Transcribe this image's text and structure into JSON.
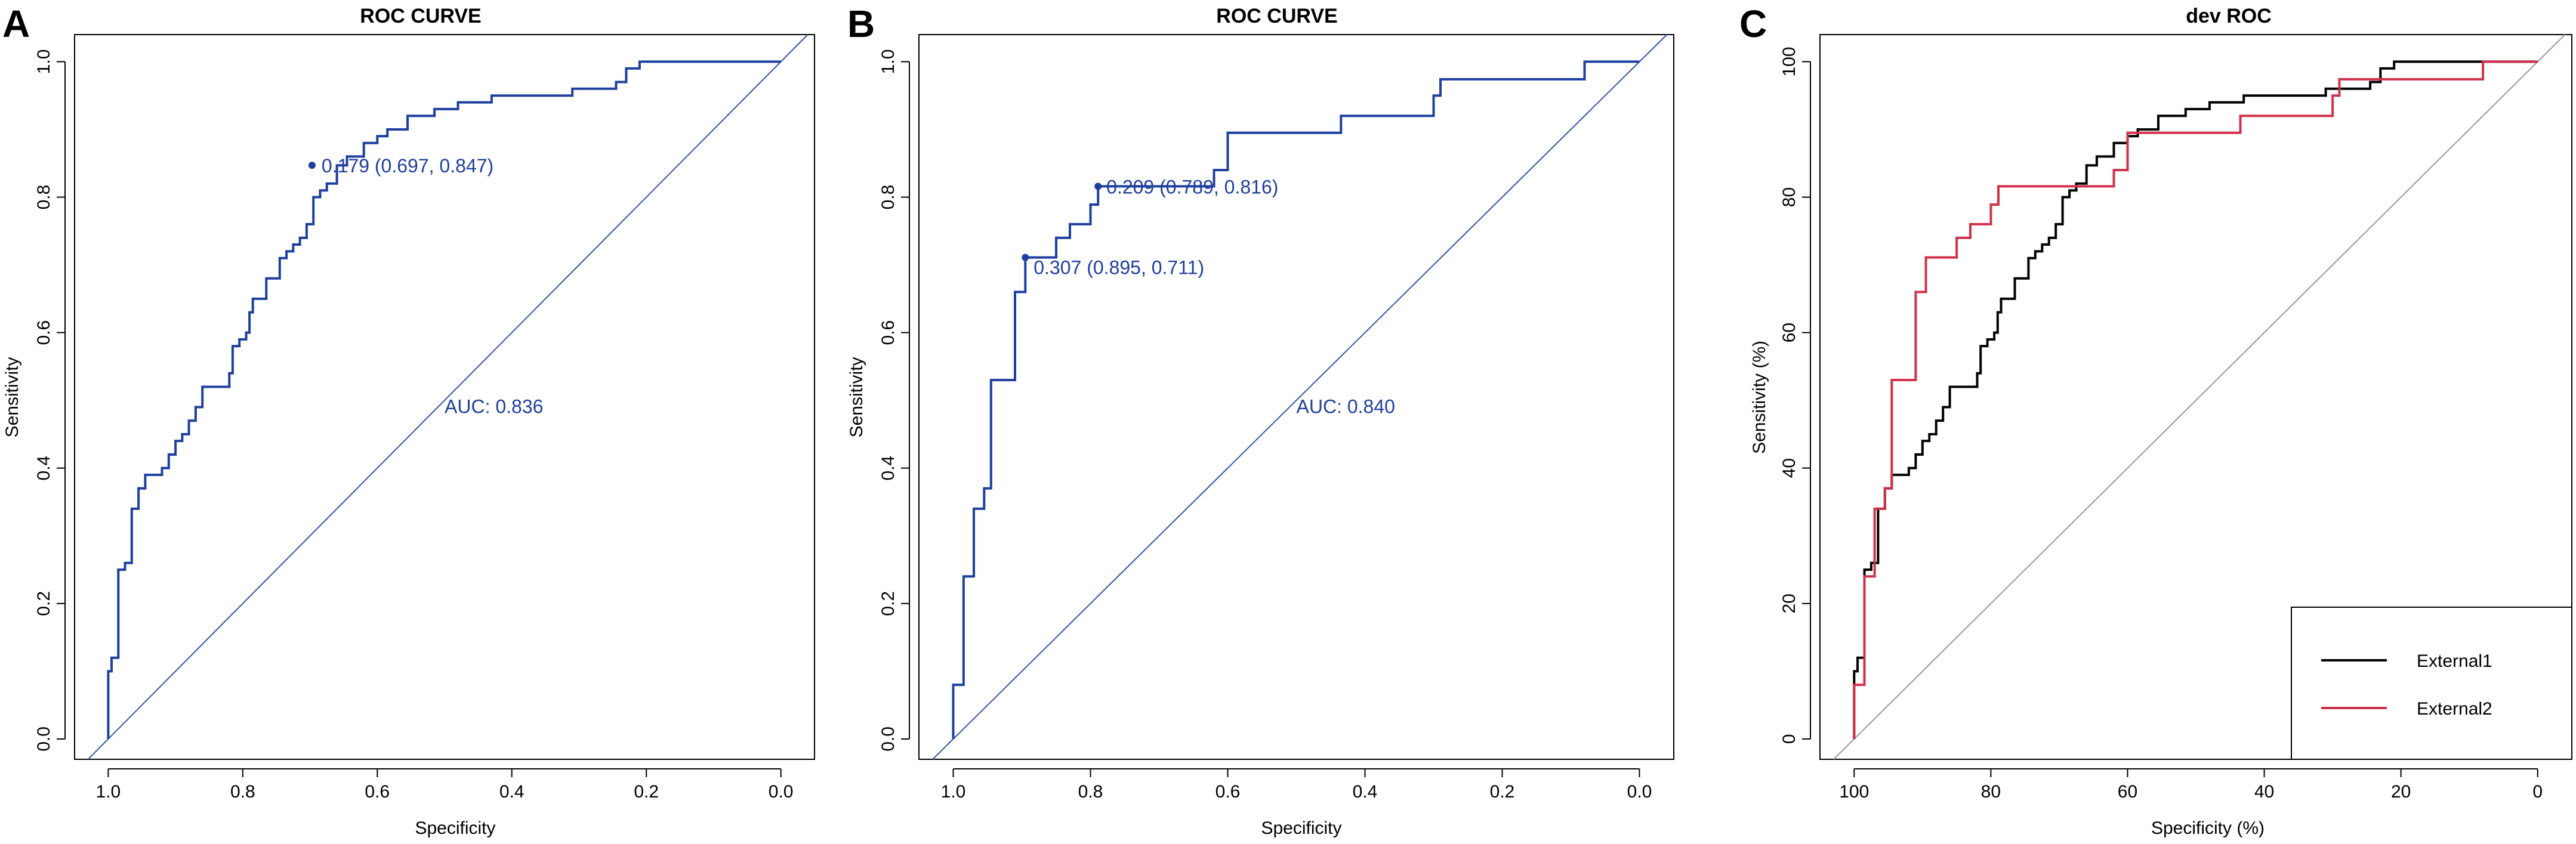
{
  "colors": {
    "roc_blue": "#1f3f9f",
    "diag_blue": "#3255a8",
    "black": "#000000",
    "red": "#d0314a",
    "grey": "#999999"
  },
  "chart_data": [
    {
      "panel": "A",
      "type": "line",
      "title": "ROC CURVE",
      "xlabel": "Specificity",
      "ylabel": "Sensitivity",
      "xlim": [
        1.05,
        -0.05
      ],
      "ylim": [
        -0.03,
        1.04
      ],
      "xticks": [
        "1.0",
        "0.8",
        "0.6",
        "0.4",
        "0.2",
        "0.0"
      ],
      "xtick_values": [
        1.0,
        0.8,
        0.6,
        0.4,
        0.2,
        0.0
      ],
      "yticks": [
        "0.0",
        "0.2",
        "0.4",
        "0.6",
        "0.8",
        "1.0"
      ],
      "ytick_values": [
        0.0,
        0.2,
        0.4,
        0.6,
        0.8,
        1.0
      ],
      "reference_line": true,
      "series": [
        {
          "name": "ROC",
          "color": "#1f3f9f",
          "points": [
            [
              1.0,
              0.0
            ],
            [
              1.0,
              0.1
            ],
            [
              0.995,
              0.1
            ],
            [
              0.995,
              0.12
            ],
            [
              0.985,
              0.12
            ],
            [
              0.985,
              0.25
            ],
            [
              0.975,
              0.25
            ],
            [
              0.975,
              0.26
            ],
            [
              0.965,
              0.26
            ],
            [
              0.965,
              0.34
            ],
            [
              0.955,
              0.34
            ],
            [
              0.955,
              0.37
            ],
            [
              0.945,
              0.37
            ],
            [
              0.945,
              0.39
            ],
            [
              0.92,
              0.39
            ],
            [
              0.92,
              0.4
            ],
            [
              0.91,
              0.4
            ],
            [
              0.91,
              0.42
            ],
            [
              0.9,
              0.42
            ],
            [
              0.9,
              0.44
            ],
            [
              0.89,
              0.44
            ],
            [
              0.89,
              0.45
            ],
            [
              0.88,
              0.45
            ],
            [
              0.88,
              0.47
            ],
            [
              0.87,
              0.47
            ],
            [
              0.87,
              0.49
            ],
            [
              0.86,
              0.49
            ],
            [
              0.86,
              0.52
            ],
            [
              0.82,
              0.52
            ],
            [
              0.82,
              0.54
            ],
            [
              0.815,
              0.54
            ],
            [
              0.815,
              0.58
            ],
            [
              0.805,
              0.58
            ],
            [
              0.805,
              0.59
            ],
            [
              0.795,
              0.59
            ],
            [
              0.795,
              0.6
            ],
            [
              0.79,
              0.6
            ],
            [
              0.79,
              0.63
            ],
            [
              0.785,
              0.63
            ],
            [
              0.785,
              0.65
            ],
            [
              0.765,
              0.65
            ],
            [
              0.765,
              0.68
            ],
            [
              0.745,
              0.68
            ],
            [
              0.745,
              0.71
            ],
            [
              0.735,
              0.71
            ],
            [
              0.735,
              0.72
            ],
            [
              0.725,
              0.72
            ],
            [
              0.725,
              0.73
            ],
            [
              0.715,
              0.73
            ],
            [
              0.715,
              0.74
            ],
            [
              0.705,
              0.74
            ],
            [
              0.705,
              0.76
            ],
            [
              0.695,
              0.76
            ],
            [
              0.695,
              0.8
            ],
            [
              0.685,
              0.8
            ],
            [
              0.685,
              0.81
            ],
            [
              0.675,
              0.81
            ],
            [
              0.675,
              0.82
            ],
            [
              0.66,
              0.82
            ],
            [
              0.66,
              0.847
            ],
            [
              0.645,
              0.847
            ],
            [
              0.645,
              0.86
            ],
            [
              0.62,
              0.86
            ],
            [
              0.62,
              0.88
            ],
            [
              0.6,
              0.88
            ],
            [
              0.6,
              0.89
            ],
            [
              0.585,
              0.89
            ],
            [
              0.585,
              0.9
            ],
            [
              0.555,
              0.9
            ],
            [
              0.555,
              0.92
            ],
            [
              0.515,
              0.92
            ],
            [
              0.515,
              0.93
            ],
            [
              0.48,
              0.93
            ],
            [
              0.48,
              0.94
            ],
            [
              0.43,
              0.94
            ],
            [
              0.43,
              0.95
            ],
            [
              0.31,
              0.95
            ],
            [
              0.31,
              0.96
            ],
            [
              0.245,
              0.96
            ],
            [
              0.245,
              0.97
            ],
            [
              0.23,
              0.97
            ],
            [
              0.23,
              0.99
            ],
            [
              0.21,
              0.99
            ],
            [
              0.21,
              1.0
            ],
            [
              0.0,
              1.0
            ]
          ]
        }
      ],
      "markers": [
        {
          "x": 0.697,
          "y": 0.847,
          "label": "0.179 (0.697, 0.847)"
        }
      ],
      "auc_text": "AUC: 0.836",
      "auc_pos": [
        0.5,
        0.49
      ]
    },
    {
      "panel": "B",
      "type": "line",
      "title": "ROC CURVE",
      "xlabel": "Specificity",
      "ylabel": "Sensitivity",
      "xlim": [
        1.05,
        -0.05
      ],
      "ylim": [
        -0.03,
        1.04
      ],
      "xticks": [
        "1.0",
        "0.8",
        "0.6",
        "0.4",
        "0.2",
        "0.0"
      ],
      "xtick_values": [
        1.0,
        0.8,
        0.6,
        0.4,
        0.2,
        0.0
      ],
      "yticks": [
        "0.0",
        "0.2",
        "0.4",
        "0.6",
        "0.8",
        "1.0"
      ],
      "ytick_values": [
        0.0,
        0.2,
        0.4,
        0.6,
        0.8,
        1.0
      ],
      "reference_line": true,
      "series": [
        {
          "name": "ROC",
          "color": "#1f3f9f",
          "points": [
            [
              1.0,
              0.0
            ],
            [
              1.0,
              0.08
            ],
            [
              0.985,
              0.08
            ],
            [
              0.985,
              0.24
            ],
            [
              0.97,
              0.24
            ],
            [
              0.97,
              0.34
            ],
            [
              0.955,
              0.34
            ],
            [
              0.955,
              0.37
            ],
            [
              0.945,
              0.37
            ],
            [
              0.945,
              0.53
            ],
            [
              0.91,
              0.53
            ],
            [
              0.91,
              0.66
            ],
            [
              0.895,
              0.66
            ],
            [
              0.895,
              0.711
            ],
            [
              0.85,
              0.711
            ],
            [
              0.85,
              0.74
            ],
            [
              0.83,
              0.74
            ],
            [
              0.83,
              0.76
            ],
            [
              0.8,
              0.76
            ],
            [
              0.8,
              0.789
            ],
            [
              0.789,
              0.789
            ],
            [
              0.789,
              0.816
            ],
            [
              0.62,
              0.816
            ],
            [
              0.62,
              0.84
            ],
            [
              0.6,
              0.84
            ],
            [
              0.6,
              0.895
            ],
            [
              0.435,
              0.895
            ],
            [
              0.435,
              0.92
            ],
            [
              0.3,
              0.92
            ],
            [
              0.3,
              0.95
            ],
            [
              0.29,
              0.95
            ],
            [
              0.29,
              0.974
            ],
            [
              0.08,
              0.974
            ],
            [
              0.08,
              1.0
            ],
            [
              0.0,
              1.0
            ]
          ]
        }
      ],
      "markers": [
        {
          "x": 0.789,
          "y": 0.816,
          "label": "0.209 (0.789, 0.816)"
        },
        {
          "x": 0.895,
          "y": 0.711,
          "label": "0.307 (0.895, 0.711)"
        }
      ],
      "auc_text": "AUC: 0.840",
      "auc_pos": [
        0.5,
        0.49
      ]
    },
    {
      "panel": "C",
      "type": "line",
      "title": "dev ROC",
      "xlabel": "Specificity (%)",
      "ylabel": "Sensitivity (%)",
      "xlim": [
        105,
        -5
      ],
      "ylim": [
        -3,
        104
      ],
      "xticks": [
        "100",
        "80",
        "60",
        "40",
        "20",
        "0"
      ],
      "xtick_values": [
        100,
        80,
        60,
        40,
        20,
        0
      ],
      "yticks": [
        "0",
        "20",
        "40",
        "60",
        "80",
        "100"
      ],
      "ytick_values": [
        0,
        20,
        40,
        60,
        80,
        100
      ],
      "reference_line": true,
      "series": [
        {
          "name": "External1",
          "color": "#000000",
          "points": [
            [
              100,
              0
            ],
            [
              100,
              10
            ],
            [
              99.5,
              10
            ],
            [
              99.5,
              12
            ],
            [
              98.5,
              12
            ],
            [
              98.5,
              25
            ],
            [
              97.5,
              25
            ],
            [
              97.5,
              26
            ],
            [
              96.5,
              26
            ],
            [
              96.5,
              34
            ],
            [
              95.5,
              34
            ],
            [
              95.5,
              37
            ],
            [
              94.5,
              37
            ],
            [
              94.5,
              39
            ],
            [
              92,
              39
            ],
            [
              92,
              40
            ],
            [
              91,
              40
            ],
            [
              91,
              42
            ],
            [
              90,
              42
            ],
            [
              90,
              44
            ],
            [
              89,
              44
            ],
            [
              89,
              45
            ],
            [
              88,
              45
            ],
            [
              88,
              47
            ],
            [
              87,
              47
            ],
            [
              87,
              49
            ],
            [
              86,
              49
            ],
            [
              86,
              52
            ],
            [
              82,
              52
            ],
            [
              82,
              54
            ],
            [
              81.5,
              54
            ],
            [
              81.5,
              58
            ],
            [
              80.5,
              58
            ],
            [
              80.5,
              59
            ],
            [
              79.5,
              59
            ],
            [
              79.5,
              60
            ],
            [
              79,
              60
            ],
            [
              79,
              63
            ],
            [
              78.5,
              63
            ],
            [
              78.5,
              65
            ],
            [
              76.5,
              65
            ],
            [
              76.5,
              68
            ],
            [
              74.5,
              68
            ],
            [
              74.5,
              71
            ],
            [
              73.5,
              71
            ],
            [
              73.5,
              72
            ],
            [
              72.5,
              72
            ],
            [
              72.5,
              73
            ],
            [
              71.5,
              73
            ],
            [
              71.5,
              74
            ],
            [
              70.5,
              74
            ],
            [
              70.5,
              76
            ],
            [
              69.5,
              76
            ],
            [
              69.5,
              80
            ],
            [
              68.5,
              80
            ],
            [
              68.5,
              81
            ],
            [
              67.5,
              81
            ],
            [
              67.5,
              82
            ],
            [
              66,
              82
            ],
            [
              66,
              84.7
            ],
            [
              64.5,
              84.7
            ],
            [
              64.5,
              86
            ],
            [
              62,
              86
            ],
            [
              62,
              88
            ],
            [
              60,
              88
            ],
            [
              60,
              89
            ],
            [
              58.5,
              89
            ],
            [
              58.5,
              90
            ],
            [
              55.5,
              90
            ],
            [
              55.5,
              92
            ],
            [
              51.5,
              92
            ],
            [
              51.5,
              93
            ],
            [
              48,
              93
            ],
            [
              48,
              94
            ],
            [
              43,
              94
            ],
            [
              43,
              95
            ],
            [
              31,
              95
            ],
            [
              31,
              96
            ],
            [
              24.5,
              96
            ],
            [
              24.5,
              97
            ],
            [
              23,
              97
            ],
            [
              23,
              99
            ],
            [
              21,
              99
            ],
            [
              21,
              100
            ],
            [
              0,
              100
            ]
          ]
        },
        {
          "name": "External2",
          "color": "#d0314a",
          "points": [
            [
              100,
              0
            ],
            [
              100,
              8
            ],
            [
              98.5,
              8
            ],
            [
              98.5,
              24
            ],
            [
              97,
              24
            ],
            [
              97,
              34
            ],
            [
              95.5,
              34
            ],
            [
              95.5,
              37
            ],
            [
              94.5,
              37
            ],
            [
              94.5,
              53
            ],
            [
              91,
              53
            ],
            [
              91,
              66
            ],
            [
              89.5,
              66
            ],
            [
              89.5,
              71.1
            ],
            [
              85,
              71.1
            ],
            [
              85,
              74
            ],
            [
              83,
              74
            ],
            [
              83,
              76
            ],
            [
              80,
              76
            ],
            [
              80,
              78.9
            ],
            [
              78.9,
              78.9
            ],
            [
              78.9,
              81.6
            ],
            [
              62,
              81.6
            ],
            [
              62,
              84
            ],
            [
              60,
              84
            ],
            [
              60,
              89.5
            ],
            [
              43.5,
              89.5
            ],
            [
              43.5,
              92
            ],
            [
              30,
              92
            ],
            [
              30,
              95
            ],
            [
              29,
              95
            ],
            [
              29,
              97.4
            ],
            [
              8,
              97.4
            ],
            [
              8,
              100
            ],
            [
              0,
              100
            ]
          ]
        }
      ],
      "legend": [
        {
          "label": "External1",
          "color": "#000000"
        },
        {
          "label": "External2",
          "color": "#d0314a"
        }
      ],
      "legend_position": "bottom-right"
    }
  ]
}
